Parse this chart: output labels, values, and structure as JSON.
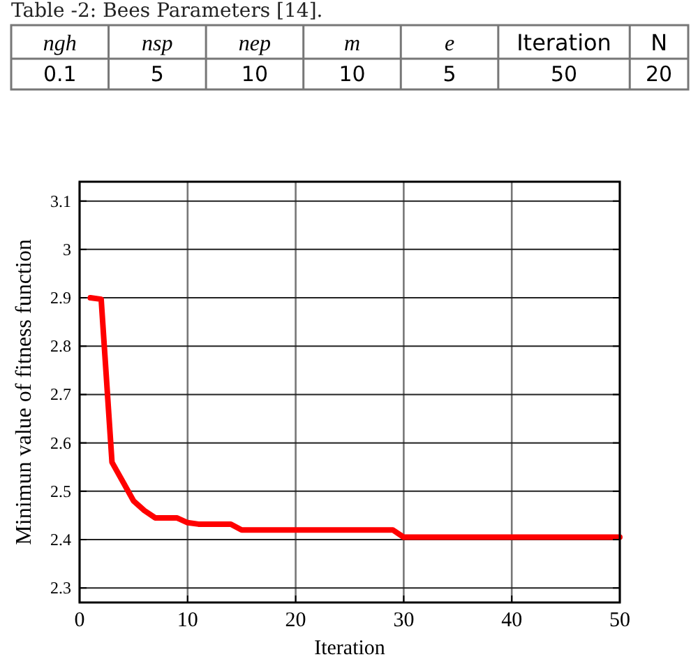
{
  "chart_data": [
    {
      "type": "other",
      "title": "Table -2: Bees Parameters [14].",
      "categories": [
        "ngh",
        "nsp",
        "nep",
        "m",
        "e",
        "Iteration",
        "N"
      ],
      "values": [
        0.1,
        5,
        10,
        10,
        5,
        50,
        20
      ],
      "data_labels": true
    },
    {
      "type": "line",
      "xlabel": "Iteration",
      "ylabel": "Minimun value of fitness function",
      "xlim": [
        0,
        50
      ],
      "xticks": [
        0,
        10,
        20,
        30,
        40,
        50
      ],
      "ylim": [
        2.27,
        3.14
      ],
      "yticks": [
        2.3,
        2.4,
        2.5,
        2.6,
        2.7,
        2.8,
        2.9,
        3,
        3.1
      ],
      "grid": true,
      "series": [
        {
          "color": "#ff0000",
          "x": [
            1,
            2,
            3,
            4,
            5,
            6,
            7,
            9,
            10,
            11,
            14,
            15,
            29,
            30,
            50
          ],
          "values": [
            2.9,
            2.897,
            2.56,
            2.52,
            2.48,
            2.46,
            2.445,
            2.445,
            2.435,
            2.432,
            2.432,
            2.42,
            2.42,
            2.405,
            2.405
          ]
        }
      ]
    }
  ]
}
